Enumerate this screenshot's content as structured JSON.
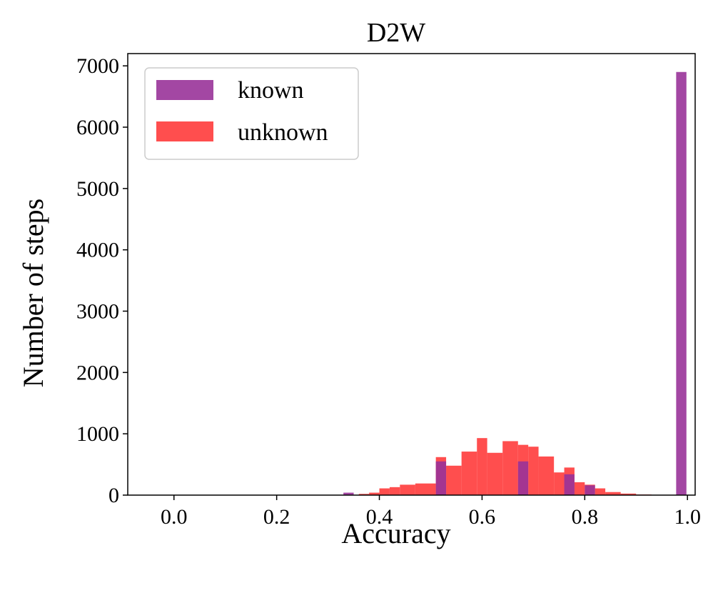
{
  "chart_data": {
    "type": "bar",
    "title": "D2W",
    "xlabel": "Accuracy",
    "ylabel": "Number of steps",
    "xlim": [
      -0.09,
      1.015
    ],
    "ylim": [
      0,
      7200
    ],
    "xticks": [
      "0.0",
      "0.2",
      "0.4",
      "0.6",
      "0.8",
      "1.0"
    ],
    "yticks": [
      "0",
      "1000",
      "2000",
      "3000",
      "4000",
      "5000",
      "6000",
      "7000"
    ],
    "legend_position": "top-left",
    "grid": false,
    "series": [
      {
        "name": "known",
        "color": "#993399",
        "bins": [
          {
            "x0": 0.33,
            "x1": 0.35,
            "y": 40
          },
          {
            "x0": 0.51,
            "x1": 0.53,
            "y": 550
          },
          {
            "x0": 0.67,
            "x1": 0.69,
            "y": 550
          },
          {
            "x0": 0.76,
            "x1": 0.78,
            "y": 340
          },
          {
            "x0": 0.8,
            "x1": 0.82,
            "y": 160
          },
          {
            "x0": 0.978,
            "x1": 0.998,
            "y": 6900
          }
        ]
      },
      {
        "name": "unknown",
        "color": "#ff3b3b",
        "bins": [
          {
            "x0": 0.36,
            "x1": 0.38,
            "y": 20
          },
          {
            "x0": 0.38,
            "x1": 0.4,
            "y": 40
          },
          {
            "x0": 0.4,
            "x1": 0.42,
            "y": 110
          },
          {
            "x0": 0.42,
            "x1": 0.44,
            "y": 130
          },
          {
            "x0": 0.44,
            "x1": 0.47,
            "y": 170
          },
          {
            "x0": 0.47,
            "x1": 0.51,
            "y": 190
          },
          {
            "x0": 0.51,
            "x1": 0.53,
            "y": 620
          },
          {
            "x0": 0.53,
            "x1": 0.56,
            "y": 480
          },
          {
            "x0": 0.56,
            "x1": 0.59,
            "y": 710
          },
          {
            "x0": 0.59,
            "x1": 0.61,
            "y": 930
          },
          {
            "x0": 0.61,
            "x1": 0.64,
            "y": 690
          },
          {
            "x0": 0.64,
            "x1": 0.67,
            "y": 880
          },
          {
            "x0": 0.67,
            "x1": 0.69,
            "y": 820
          },
          {
            "x0": 0.69,
            "x1": 0.71,
            "y": 790
          },
          {
            "x0": 0.71,
            "x1": 0.74,
            "y": 630
          },
          {
            "x0": 0.74,
            "x1": 0.76,
            "y": 370
          },
          {
            "x0": 0.76,
            "x1": 0.78,
            "y": 450
          },
          {
            "x0": 0.78,
            "x1": 0.8,
            "y": 210
          },
          {
            "x0": 0.8,
            "x1": 0.82,
            "y": 170
          },
          {
            "x0": 0.82,
            "x1": 0.84,
            "y": 110
          },
          {
            "x0": 0.84,
            "x1": 0.87,
            "y": 50
          },
          {
            "x0": 0.87,
            "x1": 0.9,
            "y": 25
          },
          {
            "x0": 0.9,
            "x1": 0.93,
            "y": 10
          }
        ]
      }
    ]
  }
}
